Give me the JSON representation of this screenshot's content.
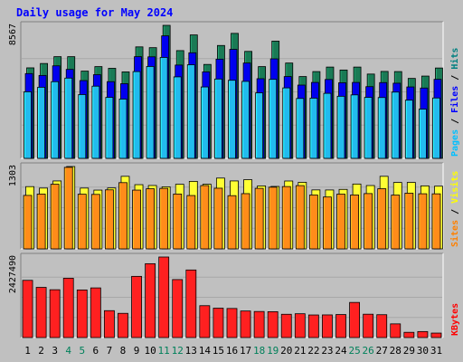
{
  "chart_data": {
    "type": "bar",
    "title": "Daily usage for May 2024",
    "categories": [
      "1",
      "2",
      "3",
      "4",
      "5",
      "6",
      "7",
      "8",
      "9",
      "10",
      "11",
      "12",
      "13",
      "14",
      "15",
      "16",
      "17",
      "18",
      "19",
      "20",
      "21",
      "22",
      "23",
      "24",
      "25",
      "26",
      "27",
      "28",
      "29",
      "30",
      "31"
    ],
    "weekend_days": [
      "4",
      "5",
      "11",
      "12",
      "18",
      "19",
      "25",
      "26"
    ],
    "panels": [
      {
        "id": "hits",
        "ymax_label": "8567",
        "ymax": 8567,
        "grid": true,
        "legend": [
          {
            "text": "Pages",
            "color": "#00c0ff"
          },
          {
            "text": " / ",
            "color": "#000000"
          },
          {
            "text": "Files",
            "color": "#0000ff"
          },
          {
            "text": " / ",
            "color": "#000000"
          },
          {
            "text": "Hits",
            "color": "#008080"
          }
        ],
        "series": [
          {
            "name": "Hits",
            "color": "#1a7a55",
            "values": [
              5830,
              6110,
              6550,
              6550,
              5620,
              5910,
              5800,
              5570,
              7180,
              7130,
              8567,
              6940,
              7950,
              6050,
              7270,
              8050,
              6890,
              5910,
              7550,
              6140,
              5270,
              5590,
              5880,
              5690,
              5880,
              5430,
              5600,
              5590,
              5150,
              5300,
              5820
            ]
          },
          {
            "name": "Files",
            "color": "#0000ee",
            "values": [
              5460,
              5340,
              5960,
              5730,
              5010,
              5390,
              4940,
              4810,
              6550,
              6540,
              7890,
              6010,
              6800,
              5570,
              6390,
              7020,
              6140,
              5130,
              6410,
              5270,
              4720,
              4890,
              5080,
              4870,
              4890,
              4620,
              4880,
              4840,
              4600,
              4530,
              5090
            ]
          },
          {
            "name": "Pages",
            "color": "#22bbee",
            "values": [
              4290,
              4580,
              4940,
              5170,
              4110,
              4650,
              3930,
              3820,
              5590,
              5920,
              6500,
              5250,
              6030,
              4600,
              5110,
              5030,
              4960,
              4220,
              5090,
              4540,
              3860,
              3880,
              4190,
              4000,
              4090,
              3930,
              3920,
              4270,
              3750,
              3170,
              3890
            ]
          }
        ]
      },
      {
        "id": "visits",
        "ymax_label": "1303",
        "ymax": 1303,
        "grid": true,
        "legend": [
          {
            "text": "Sites",
            "color": "#ff8000"
          },
          {
            "text": " / ",
            "color": "#000000"
          },
          {
            "text": "Visits",
            "color": "#ffff00"
          }
        ],
        "series": [
          {
            "name": "Visits",
            "color": "#ffff33",
            "values": [
              985,
              962,
              1075,
              1303,
              962,
              930,
              964,
              1148,
              1016,
              1003,
              982,
              1022,
              1068,
              1023,
              1120,
              1075,
              1095,
              996,
              988,
              1074,
              1053,
              933,
              932,
              941,
              1026,
              1002,
              1148,
              1051,
              1052,
              997,
              992
            ]
          },
          {
            "name": "Sites",
            "color": "#ff8c1a",
            "values": [
              846,
              867,
              1023,
              1290,
              865,
              862,
              934,
              1048,
              930,
              951,
              957,
              868,
              844,
              1002,
              960,
              842,
              874,
              958,
              976,
              986,
              1001,
              852,
              821,
              866,
              853,
              875,
              952,
              851,
              881,
              872,
              871
            ]
          }
        ]
      },
      {
        "id": "kbytes",
        "ymax_label": "2427490",
        "ymax": 2427490,
        "grid": true,
        "legend": [
          {
            "text": "KBytes",
            "color": "#ff0000"
          }
        ],
        "series": [
          {
            "name": "KBytes",
            "color": "#ff2020",
            "values": [
              1725000,
              1513000,
              1442000,
              1788000,
              1435000,
              1497000,
              811000,
              730000,
              1845000,
              2226000,
              2427490,
              1748000,
              2037000,
              961000,
              886000,
              877000,
              801000,
              786000,
              780000,
              702000,
              718000,
              681000,
              683000,
              694000,
              1059000,
              704000,
              689000,
              413000,
              158000,
              181000,
              135000
            ]
          }
        ]
      }
    ]
  }
}
